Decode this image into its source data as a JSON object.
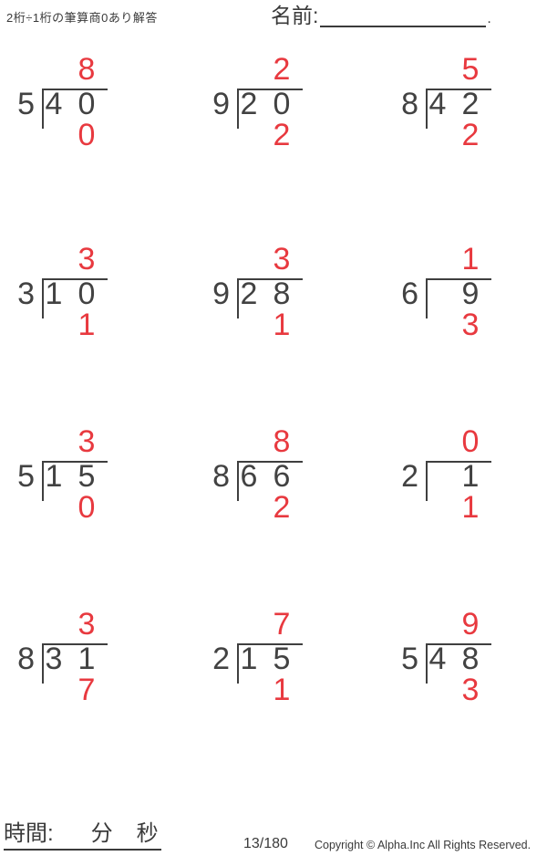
{
  "header": {
    "title": "2桁÷1桁の筆算商0あり解答",
    "name_label": "名前:",
    "name_line_period": "."
  },
  "problems": [
    {
      "divisor": "5",
      "dividend_tens": "4",
      "dividend_ones": "0",
      "quotient": "8",
      "remainder": "0"
    },
    {
      "divisor": "9",
      "dividend_tens": "2",
      "dividend_ones": "0",
      "quotient": "2",
      "remainder": "2"
    },
    {
      "divisor": "8",
      "dividend_tens": "4",
      "dividend_ones": "2",
      "quotient": "5",
      "remainder": "2"
    },
    {
      "divisor": "3",
      "dividend_tens": "1",
      "dividend_ones": "0",
      "quotient": "3",
      "remainder": "1"
    },
    {
      "divisor": "9",
      "dividend_tens": "2",
      "dividend_ones": "8",
      "quotient": "3",
      "remainder": "1"
    },
    {
      "divisor": "6",
      "dividend_tens": "",
      "dividend_ones": "9",
      "quotient": "1",
      "remainder": "3"
    },
    {
      "divisor": "5",
      "dividend_tens": "1",
      "dividend_ones": "5",
      "quotient": "3",
      "remainder": "0"
    },
    {
      "divisor": "8",
      "dividend_tens": "6",
      "dividend_ones": "6",
      "quotient": "8",
      "remainder": "2"
    },
    {
      "divisor": "2",
      "dividend_tens": "",
      "dividend_ones": "1",
      "quotient": "0",
      "remainder": "1"
    },
    {
      "divisor": "8",
      "dividend_tens": "3",
      "dividend_ones": "1",
      "quotient": "3",
      "remainder": "7"
    },
    {
      "divisor": "2",
      "dividend_tens": "1",
      "dividend_ones": "5",
      "quotient": "7",
      "remainder": "1"
    },
    {
      "divisor": "5",
      "dividend_tens": "4",
      "dividend_ones": "8",
      "quotient": "9",
      "remainder": "3"
    }
  ],
  "footer": {
    "time_label": "時間:",
    "minutes_label": "分",
    "seconds_label": "秒",
    "page_number": "13/180",
    "copyright": "Copyright © Alpha.Inc All Rights Reserved."
  },
  "colors": {
    "answer_red": "#e8393f",
    "text_dark": "#3a3a3a"
  }
}
